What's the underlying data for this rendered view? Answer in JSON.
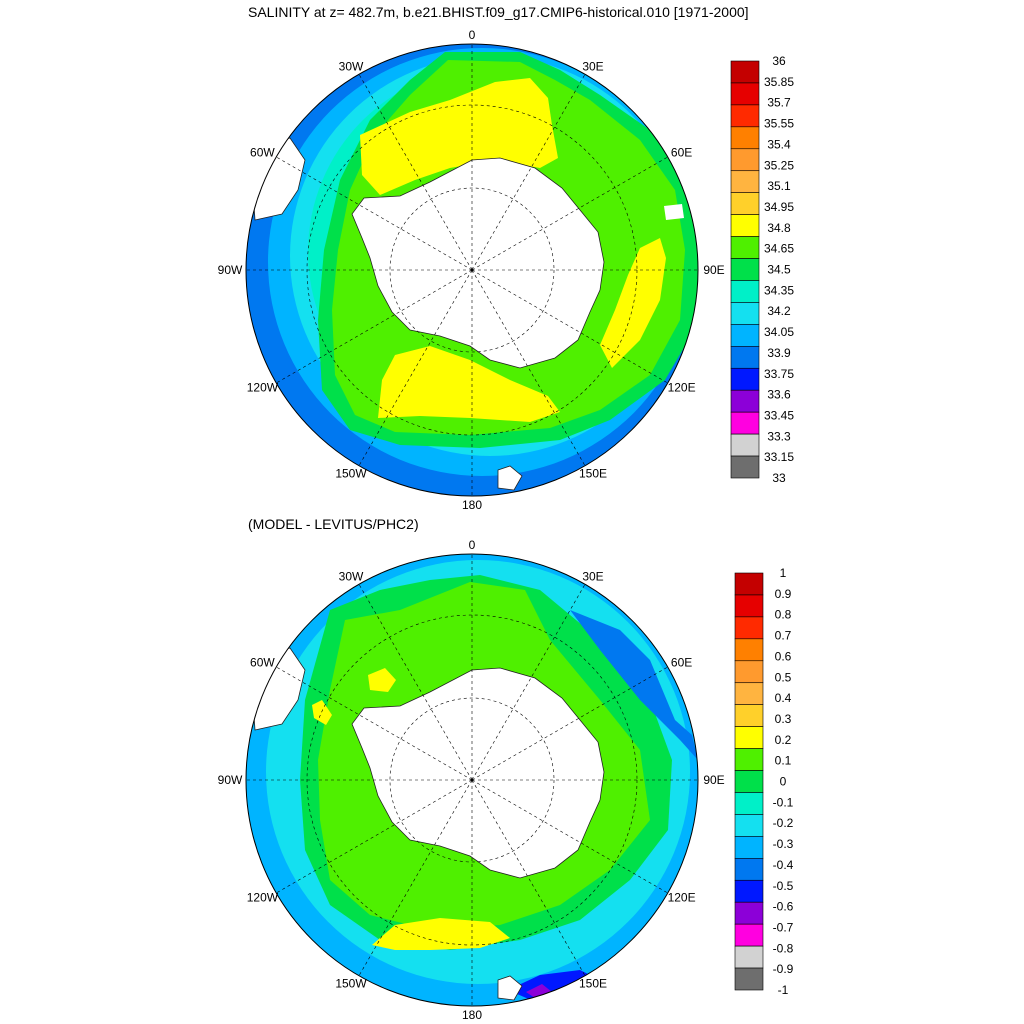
{
  "panels": [
    {
      "title": "SALINITY at z= 482.7m, b.e21.BHIST.f09_g17.CMIP6-historical.010 [1971-2000]",
      "colorbar": {
        "labels": [
          "36",
          "35.85",
          "35.7",
          "35.55",
          "35.4",
          "35.25",
          "35.1",
          "34.95",
          "34.8",
          "34.65",
          "34.5",
          "34.35",
          "34.2",
          "34.05",
          "33.9",
          "33.75",
          "33.6",
          "33.45",
          "33.3",
          "33.15",
          "33"
        ],
        "colors": [
          "#c40000",
          "#e60000",
          "#ff2a00",
          "#ff8000",
          "#ff9a2e",
          "#ffb440",
          "#ffd02a",
          "#ffff00",
          "#4ff000",
          "#00e04a",
          "#00f0c8",
          "#14e0f0",
          "#00b4ff",
          "#0078f0",
          "#0018ff",
          "#8c00d8",
          "#ff00e0",
          "#d2d2d2",
          "#6e6e6e"
        ]
      }
    },
    {
      "title": "(MODEL - LEVITUS/PHC2)",
      "colorbar": {
        "labels": [
          "1",
          "0.9",
          "0.8",
          "0.7",
          "0.6",
          "0.5",
          "0.4",
          "0.3",
          "0.2",
          "0.1",
          "0",
          "-0.1",
          "-0.2",
          "-0.3",
          "-0.4",
          "-0.5",
          "-0.6",
          "-0.7",
          "-0.8",
          "-0.9",
          "-1"
        ],
        "colors": [
          "#c40000",
          "#e60000",
          "#ff2a00",
          "#ff8000",
          "#ff9a2e",
          "#ffb440",
          "#ffd02a",
          "#ffff00",
          "#4ff000",
          "#00e04a",
          "#00f0c8",
          "#14e0f0",
          "#00b4ff",
          "#0078f0",
          "#0018ff",
          "#8c00d8",
          "#ff00e0",
          "#d2d2d2",
          "#6e6e6e"
        ]
      }
    }
  ],
  "longitude_labels": [
    "0",
    "30E",
    "60E",
    "90E",
    "120E",
    "150E",
    "180",
    "150W",
    "120W",
    "90W",
    "60W",
    "30W"
  ]
}
